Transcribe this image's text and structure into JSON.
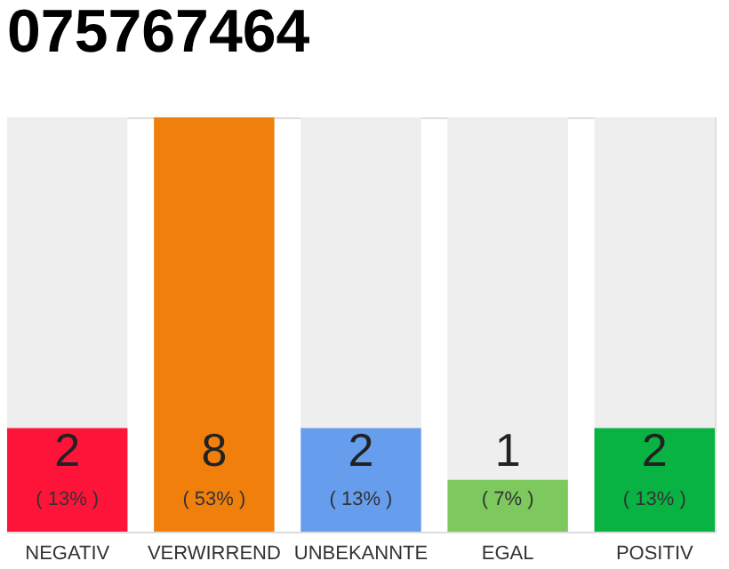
{
  "chart_data": {
    "type": "bar",
    "title": "075767464",
    "categories": [
      "NEGATIV",
      "VERWIRREND",
      "UNBEKANNTE",
      "EGAL",
      "POSITIV"
    ],
    "values": [
      2,
      8,
      2,
      1,
      2
    ],
    "colors": [
      "#ff1439",
      "#f07f0c",
      "#669ded",
      "#7dc95d",
      "#09b343"
    ],
    "data_labels": true,
    "annotations": [
      "( 13% )",
      "( 53% )",
      "( 13% )",
      "( 7% )",
      "( 13% )"
    ],
    "ylim": [
      0,
      8
    ],
    "tick_labels": "x",
    "grid": false,
    "legend": false
  }
}
